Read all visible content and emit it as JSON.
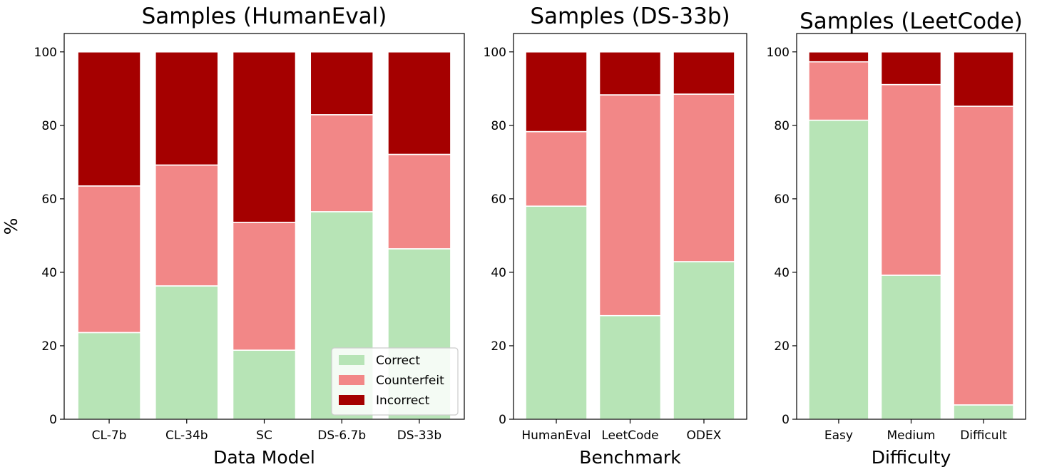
{
  "chart_data": [
    {
      "type": "bar",
      "stacked": true,
      "title": "Samples (HumanEval)",
      "xlabel": "Data Model",
      "ylabel": "%",
      "ylim": [
        0,
        105
      ],
      "yticks": [
        0,
        20,
        40,
        60,
        80,
        100
      ],
      "grid": false,
      "legend": "lower-right",
      "categories": [
        "CL-7b",
        "CL-34b",
        "SC",
        "DS-6.7b",
        "DS-33b"
      ],
      "series": [
        {
          "name": "Correct",
          "color": "#b7e4b6",
          "values": [
            23.6,
            36.3,
            18.8,
            56.5,
            46.4
          ]
        },
        {
          "name": "Counterfeit",
          "color": "#f28787",
          "values": [
            39.9,
            32.9,
            34.8,
            26.4,
            25.7
          ]
        },
        {
          "name": "Incorrect",
          "color": "#a50000",
          "values": [
            36.5,
            30.8,
            46.4,
            17.1,
            27.9
          ]
        }
      ]
    },
    {
      "type": "bar",
      "stacked": true,
      "title": "Samples (DS-33b)",
      "xlabel": "Benchmark",
      "ylabel": "",
      "ylim": [
        0,
        105
      ],
      "yticks": [
        0,
        20,
        40,
        60,
        80,
        100
      ],
      "grid": false,
      "legend": "",
      "categories": [
        "HumanEval",
        "LeetCode",
        "ODEX"
      ],
      "series": [
        {
          "name": "Correct",
          "color": "#b7e4b6",
          "values": [
            58.0,
            28.2,
            42.9
          ]
        },
        {
          "name": "Counterfeit",
          "color": "#f28787",
          "values": [
            20.3,
            60.1,
            45.6
          ]
        },
        {
          "name": "Incorrect",
          "color": "#a50000",
          "values": [
            21.7,
            11.7,
            11.5
          ]
        }
      ]
    },
    {
      "type": "bar",
      "stacked": true,
      "title": "Samples (LeetCode)",
      "xlabel": "Difficulty",
      "ylabel": "",
      "ylim": [
        0,
        105
      ],
      "yticks": [
        0,
        20,
        40,
        60,
        80,
        100
      ],
      "grid": false,
      "legend": "",
      "categories": [
        "Easy",
        "Medium",
        "Difficult"
      ],
      "series": [
        {
          "name": "Correct",
          "color": "#b7e4b6",
          "values": [
            81.4,
            39.2,
            3.9
          ]
        },
        {
          "name": "Counterfeit",
          "color": "#f28787",
          "values": [
            15.9,
            51.9,
            81.3
          ]
        },
        {
          "name": "Incorrect",
          "color": "#a50000",
          "values": [
            2.7,
            8.9,
            14.8
          ]
        }
      ]
    }
  ]
}
